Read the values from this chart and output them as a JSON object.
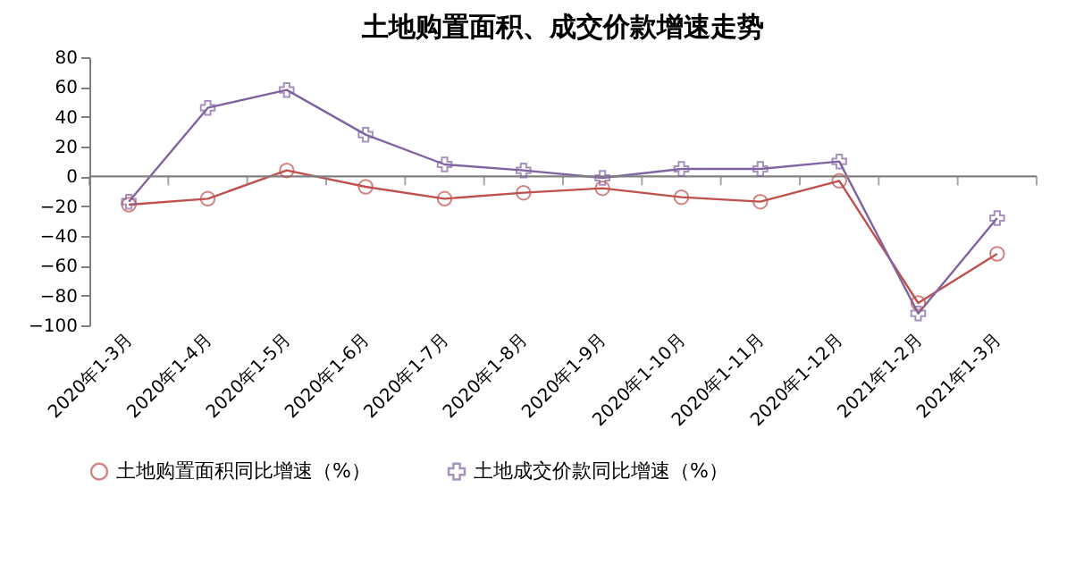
{
  "chart_data": {
    "type": "line",
    "title": "土地购置面积、成交价款增速走势",
    "categories": [
      "2020年1-3月",
      "2020年1-4月",
      "2020年1-5月",
      "2020年1-6月",
      "2020年1-7月",
      "2020年1-8月",
      "2020年1-9月",
      "2020年1-10月",
      "2020年1-11月",
      "2020年1-12月",
      "2021年1-2月",
      "2021年1-3月"
    ],
    "series": [
      {
        "name": "土地购置面积同比增速（%）",
        "color": "#c0504d",
        "marker": "circle",
        "values": [
          -19,
          -15,
          4,
          -7,
          -15,
          -11,
          -8,
          -14,
          -17,
          -3,
          -85,
          -52
        ]
      },
      {
        "name": "土地成交价款同比增速（%）",
        "color": "#8064a2",
        "marker": "cross",
        "values": [
          -17,
          46,
          58,
          28,
          8,
          4,
          -1,
          5,
          5,
          10,
          -92,
          -28
        ]
      }
    ],
    "ylim": [
      -100,
      80
    ],
    "yticks": [
      -100,
      -80,
      -60,
      -40,
      -20,
      0,
      20,
      40,
      60,
      80
    ],
    "ref_lines": [
      {
        "axis": "y",
        "value": 0,
        "color": "#808080"
      }
    ],
    "grid": false,
    "legend": "bottom"
  }
}
